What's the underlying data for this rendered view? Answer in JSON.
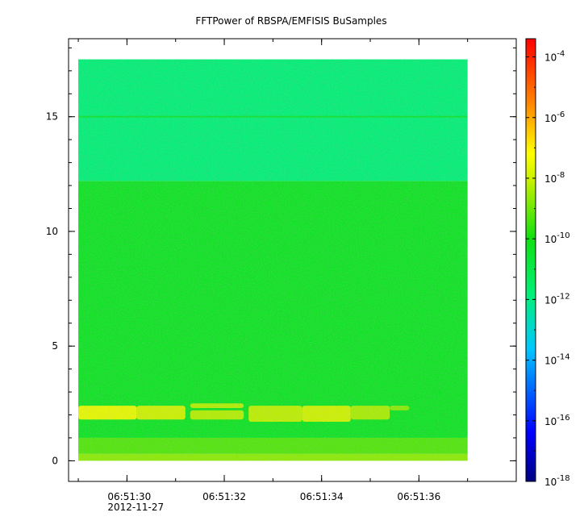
{
  "chart_data": {
    "type": "heatmap",
    "title": "FFTPower of RBSPA/EMFISIS  BuSamples",
    "xlabel": "",
    "ylabel": "",
    "x_ticks": [
      {
        "label": "06:51:30",
        "sublabel": "2012-11-27",
        "t": 30
      },
      {
        "label": "06:51:32",
        "t": 32
      },
      {
        "label": "06:51:34",
        "t": 34
      },
      {
        "label": "06:51:36",
        "t": 36
      }
    ],
    "x_range_seconds": [
      28.8,
      38.0
    ],
    "x_data_extent_seconds": [
      29.0,
      37.0
    ],
    "y_ticks": [
      "0",
      "5",
      "10",
      "15"
    ],
    "ylim": [
      -0.9,
      18.4
    ],
    "y_data_extent": [
      0,
      17.5
    ],
    "colorbar": {
      "scale": "log",
      "min_exponent": -18,
      "max_exponent": -3.4,
      "tick_exponents": [
        "-4",
        "-6",
        "-8",
        "-10",
        "-12",
        "-14",
        "-16",
        "-18"
      ],
      "tick_base": "10"
    },
    "bands": [
      {
        "y0": 0.0,
        "y1": 0.3,
        "log10_power": -8.7
      },
      {
        "y0": 0.3,
        "y1": 1.0,
        "log10_power": -9.3
      },
      {
        "y0": 1.0,
        "y1": 12.2,
        "log10_power": -10.3
      },
      {
        "y0": 12.2,
        "y1": 17.5,
        "log10_power": -11.8
      }
    ],
    "line_features": [
      {
        "y": 15.0,
        "log10_power": -10.5
      }
    ],
    "bursts": [
      {
        "t0": 29.0,
        "t1": 30.2,
        "y0": 1.8,
        "y1": 2.4,
        "log10_power": -7.6
      },
      {
        "t0": 30.2,
        "t1": 31.2,
        "y0": 1.8,
        "y1": 2.4,
        "log10_power": -8.0
      },
      {
        "t0": 31.3,
        "t1": 32.4,
        "y0": 1.8,
        "y1": 2.2,
        "log10_power": -8.3
      },
      {
        "t0": 31.3,
        "t1": 32.4,
        "y0": 2.3,
        "y1": 2.5,
        "log10_power": -8.3
      },
      {
        "t0": 32.5,
        "t1": 33.6,
        "y0": 1.7,
        "y1": 2.4,
        "log10_power": -8.2
      },
      {
        "t0": 33.6,
        "t1": 34.6,
        "y0": 1.7,
        "y1": 2.4,
        "log10_power": -8.0
      },
      {
        "t0": 34.6,
        "t1": 35.4,
        "y0": 1.8,
        "y1": 2.4,
        "log10_power": -8.4
      },
      {
        "t0": 35.4,
        "t1": 35.8,
        "y0": 2.2,
        "y1": 2.4,
        "log10_power": -8.7
      }
    ]
  }
}
